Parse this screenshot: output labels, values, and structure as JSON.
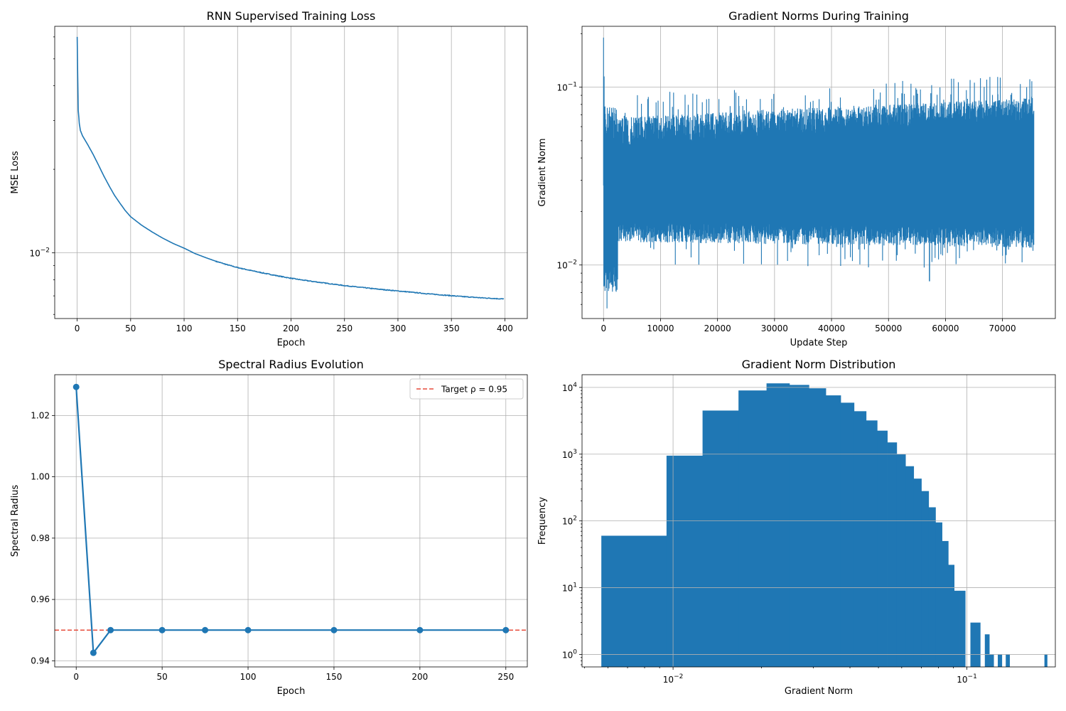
{
  "chart_data": [
    {
      "type": "line",
      "title": "RNN Supervised Training Loss",
      "xlabel": "Epoch",
      "ylabel": "MSE Loss",
      "xlim": [
        -21,
        421
      ],
      "ylim_log": [
        0.0058,
        0.0655
      ],
      "yscale": "log",
      "grid": true,
      "xticks": [
        0,
        50,
        100,
        150,
        200,
        250,
        300,
        350,
        400
      ],
      "yticks": [
        {
          "value": 0.01,
          "base": "10",
          "exp": "−2"
        }
      ],
      "color": "#1f77b4",
      "x": [
        0,
        1,
        2,
        3,
        5,
        10,
        15,
        20,
        25,
        30,
        35,
        40,
        45,
        50,
        60,
        70,
        80,
        90,
        100,
        110,
        120,
        130,
        140,
        150,
        160,
        170,
        180,
        190,
        200,
        210,
        220,
        230,
        240,
        250,
        260,
        270,
        280,
        290,
        300,
        310,
        320,
        330,
        340,
        350,
        360,
        370,
        380,
        390,
        399
      ],
      "y": [
        0.06,
        0.0326,
        0.0292,
        0.0276,
        0.0264,
        0.0245,
        0.0226,
        0.0207,
        0.0189,
        0.0174,
        0.0161,
        0.0151,
        0.0142,
        0.0135,
        0.0126,
        0.0119,
        0.0113,
        0.0108,
        0.0104,
        0.00995,
        0.00962,
        0.00932,
        0.00907,
        0.00885,
        0.00868,
        0.00852,
        0.00837,
        0.00823,
        0.0081,
        0.00799,
        0.00789,
        0.0078,
        0.00771,
        0.00762,
        0.00755,
        0.00748,
        0.00741,
        0.00735,
        0.00729,
        0.00723,
        0.00717,
        0.00711,
        0.00706,
        0.00701,
        0.00696,
        0.00692,
        0.00688,
        0.00685,
        0.00682
      ]
    },
    {
      "type": "line",
      "title": "Gradient Norms During Training",
      "xlabel": "Update Step",
      "ylabel": "Gradient Norm",
      "xlim": [
        -3775,
        79275
      ],
      "ylim_log": [
        0.005,
        0.22
      ],
      "yscale": "log",
      "grid": true,
      "xticks": [
        0,
        10000,
        20000,
        30000,
        40000,
        50000,
        60000,
        70000
      ],
      "yticks": [
        {
          "value": 0.01,
          "base": "10",
          "exp": "−2"
        },
        {
          "value": 0.1,
          "base": "10",
          "exp": "−1"
        }
      ],
      "color": "#1f77b4",
      "total_steps": 75500,
      "band": {
        "typical_low": 0.012,
        "typical_high": 0.07,
        "min": 0.0057,
        "max": 0.19
      }
    },
    {
      "type": "line",
      "title": "Spectral Radius Evolution",
      "xlabel": "Epoch",
      "ylabel": "Spectral Radius",
      "xlim": [
        -12.5,
        262.5
      ],
      "ylim": [
        0.938,
        1.0333
      ],
      "grid": true,
      "xticks": [
        0,
        50,
        100,
        150,
        200,
        250
      ],
      "yticks": [
        0.94,
        0.96,
        0.98,
        1.0,
        1.02
      ],
      "ytick_labels": [
        "0.94",
        "0.96",
        "0.98",
        "1.00",
        "1.02"
      ],
      "color": "#1f77b4",
      "x": [
        0,
        10,
        20,
        50,
        75,
        100,
        150,
        200,
        250
      ],
      "y": [
        1.0293,
        0.9426,
        0.95,
        0.95,
        0.95,
        0.95,
        0.95,
        0.95,
        0.95
      ],
      "reference": {
        "value": 0.95,
        "label": "Target ρ = 0.95",
        "color": "#e74c3c"
      },
      "legend": "top-right"
    },
    {
      "type": "bar",
      "title": "Gradient Norm Distribution",
      "xlabel": "Gradient Norm",
      "ylabel": "Frequency",
      "xscale": "log",
      "yscale": "log",
      "xlim_log": [
        0.0049,
        0.2
      ],
      "ylim_log": [
        0.65,
        15500
      ],
      "grid": true,
      "xticks": [
        {
          "value": 0.01,
          "base": "10",
          "exp": "−2"
        },
        {
          "value": 0.1,
          "base": "10",
          "exp": "−1"
        }
      ],
      "yticks": [
        {
          "value": 1,
          "base": "10",
          "exp": "0"
        },
        {
          "value": 10,
          "base": "10",
          "exp": "1"
        },
        {
          "value": 100,
          "base": "10",
          "exp": "2"
        },
        {
          "value": 1000,
          "base": "10",
          "exp": "3"
        },
        {
          "value": 10000,
          "base": "10",
          "exp": "4"
        }
      ],
      "color": "#1f77b4",
      "bins": [
        {
          "left": 0.0057,
          "right": 0.0095,
          "count": 60
        },
        {
          "left": 0.0095,
          "right": 0.0126,
          "count": 950
        },
        {
          "left": 0.0126,
          "right": 0.0167,
          "count": 4500
        },
        {
          "left": 0.0167,
          "right": 0.0208,
          "count": 9000
        },
        {
          "left": 0.0208,
          "right": 0.0249,
          "count": 11500
        },
        {
          "left": 0.0249,
          "right": 0.029,
          "count": 10900
        },
        {
          "left": 0.029,
          "right": 0.0331,
          "count": 9700
        },
        {
          "left": 0.0331,
          "right": 0.0372,
          "count": 7600
        },
        {
          "left": 0.0372,
          "right": 0.0413,
          "count": 5900
        },
        {
          "left": 0.0413,
          "right": 0.0454,
          "count": 4400
        },
        {
          "left": 0.0454,
          "right": 0.0495,
          "count": 3200
        },
        {
          "left": 0.0495,
          "right": 0.0536,
          "count": 2250
        },
        {
          "left": 0.0536,
          "right": 0.0577,
          "count": 1500
        },
        {
          "left": 0.0577,
          "right": 0.0618,
          "count": 1000
        },
        {
          "left": 0.0618,
          "right": 0.0659,
          "count": 660
        },
        {
          "left": 0.0659,
          "right": 0.07,
          "count": 430
        },
        {
          "left": 0.07,
          "right": 0.0741,
          "count": 280
        },
        {
          "left": 0.0741,
          "right": 0.0782,
          "count": 160
        },
        {
          "left": 0.0782,
          "right": 0.0823,
          "count": 95
        },
        {
          "left": 0.0823,
          "right": 0.0864,
          "count": 50
        },
        {
          "left": 0.0864,
          "right": 0.0905,
          "count": 22
        },
        {
          "left": 0.0905,
          "right": 0.0946,
          "count": 9
        },
        {
          "left": 0.0946,
          "right": 0.0987,
          "count": 9
        },
        {
          "left": 0.1028,
          "right": 0.111,
          "count": 3
        },
        {
          "left": 0.1151,
          "right": 0.1192,
          "count": 2
        },
        {
          "left": 0.1192,
          "right": 0.1233,
          "count": 1
        },
        {
          "left": 0.1274,
          "right": 0.1315,
          "count": 1
        },
        {
          "left": 0.1356,
          "right": 0.1397,
          "count": 1
        },
        {
          "left": 0.1836,
          "right": 0.1875,
          "count": 1
        }
      ]
    }
  ]
}
